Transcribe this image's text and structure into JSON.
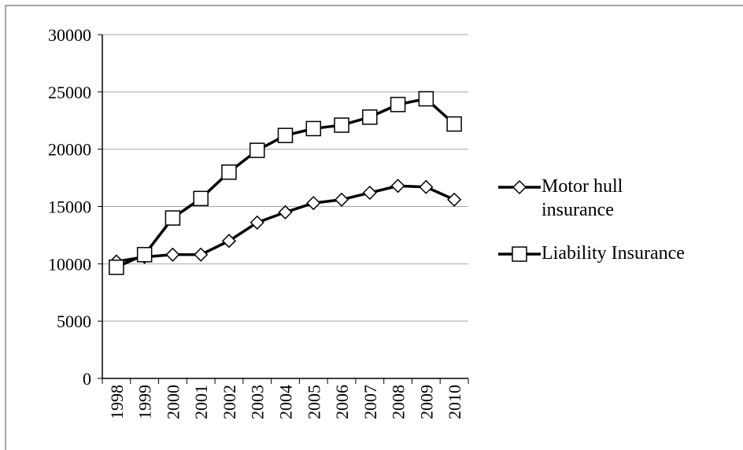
{
  "chart_data": {
    "type": "line",
    "categories": [
      "1998",
      "1999",
      "2000",
      "2001",
      "2002",
      "2003",
      "2004",
      "2005",
      "2006",
      "2007",
      "2008",
      "2009",
      "2010"
    ],
    "series": [
      {
        "name": "Motor hull insurance",
        "color": "#000000",
        "marker": "diamond",
        "values": [
          10200,
          10600,
          10800,
          10800,
          12000,
          13600,
          14500,
          15300,
          15600,
          16200,
          16800,
          16700,
          15600
        ]
      },
      {
        "name": "Liability Insurance",
        "color": "#000000",
        "marker": "square",
        "values": [
          9700,
          10800,
          14000,
          15700,
          18000,
          19900,
          21200,
          21800,
          22100,
          22800,
          23900,
          24400,
          22200
        ]
      }
    ],
    "ylim": [
      0,
      30000
    ],
    "yticks": [
      0,
      5000,
      10000,
      15000,
      20000,
      25000,
      30000
    ],
    "grid": true,
    "legend": "right"
  }
}
